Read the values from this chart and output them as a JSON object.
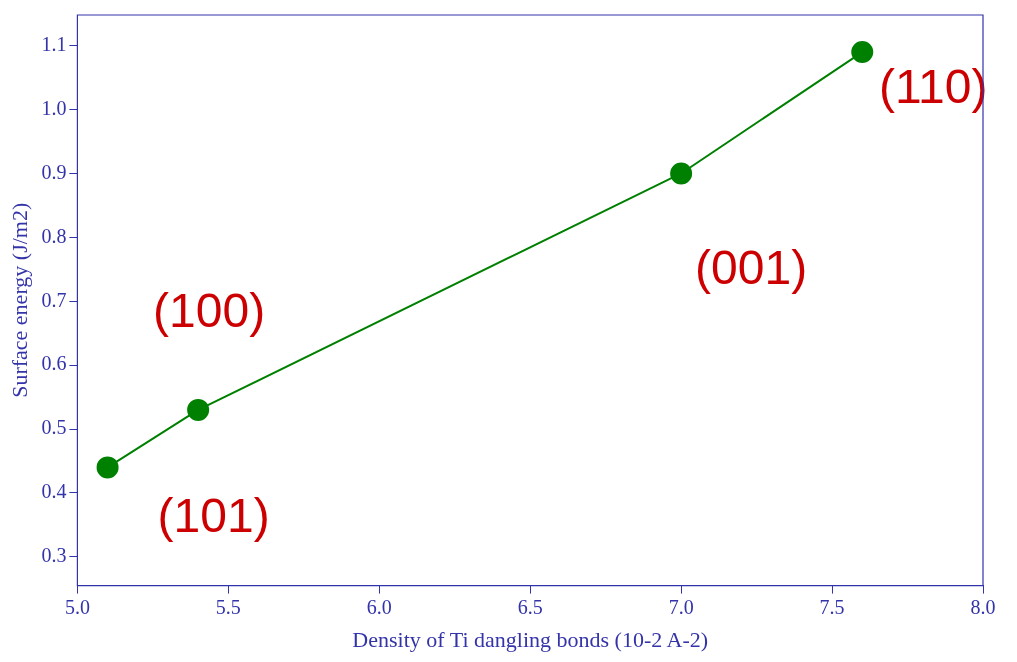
{
  "chart_data": {
    "type": "line",
    "xlabel": "Density of Ti dangling bonds (10-2 A-2)",
    "ylabel": "Surface energy (J/m2)",
    "x": [
      5.1,
      5.4,
      7.0,
      7.6
    ],
    "series": [
      {
        "color": "#008000",
        "values": [
          0.44,
          0.53,
          0.9,
          1.09
        ]
      }
    ],
    "xlim": [
      5.0,
      8.0
    ],
    "xticks": [
      {
        "value": 5.0,
        "label": "5.0"
      },
      {
        "value": 5.5,
        "label": "5.5"
      },
      {
        "value": 6.0,
        "label": "6.0"
      },
      {
        "value": 6.5,
        "label": "6.5"
      },
      {
        "value": 7.0,
        "label": "7.0"
      },
      {
        "value": 7.5,
        "label": "7.5"
      },
      {
        "value": 8.0,
        "label": "8.0"
      }
    ],
    "ylim": [
      0.255,
      1.148
    ],
    "yticks": [
      0.3,
      0.4,
      0.5,
      0.6,
      0.7,
      0.8,
      0.9,
      {
        "value": 1.0,
        "label": "1.0"
      },
      1.1
    ],
    "marker": "circle",
    "line_style": "solid",
    "grid": false,
    "legend": false,
    "annotations": [
      {
        "text": "(101)",
        "x": 5.1,
        "y": 0.44
      },
      {
        "text": "(100)",
        "x": 5.4,
        "y": 0.53
      },
      {
        "text": "(001)",
        "x": 7.0,
        "y": 0.9
      },
      {
        "text": "(110)",
        "x": 7.6,
        "y": 1.09
      }
    ]
  }
}
